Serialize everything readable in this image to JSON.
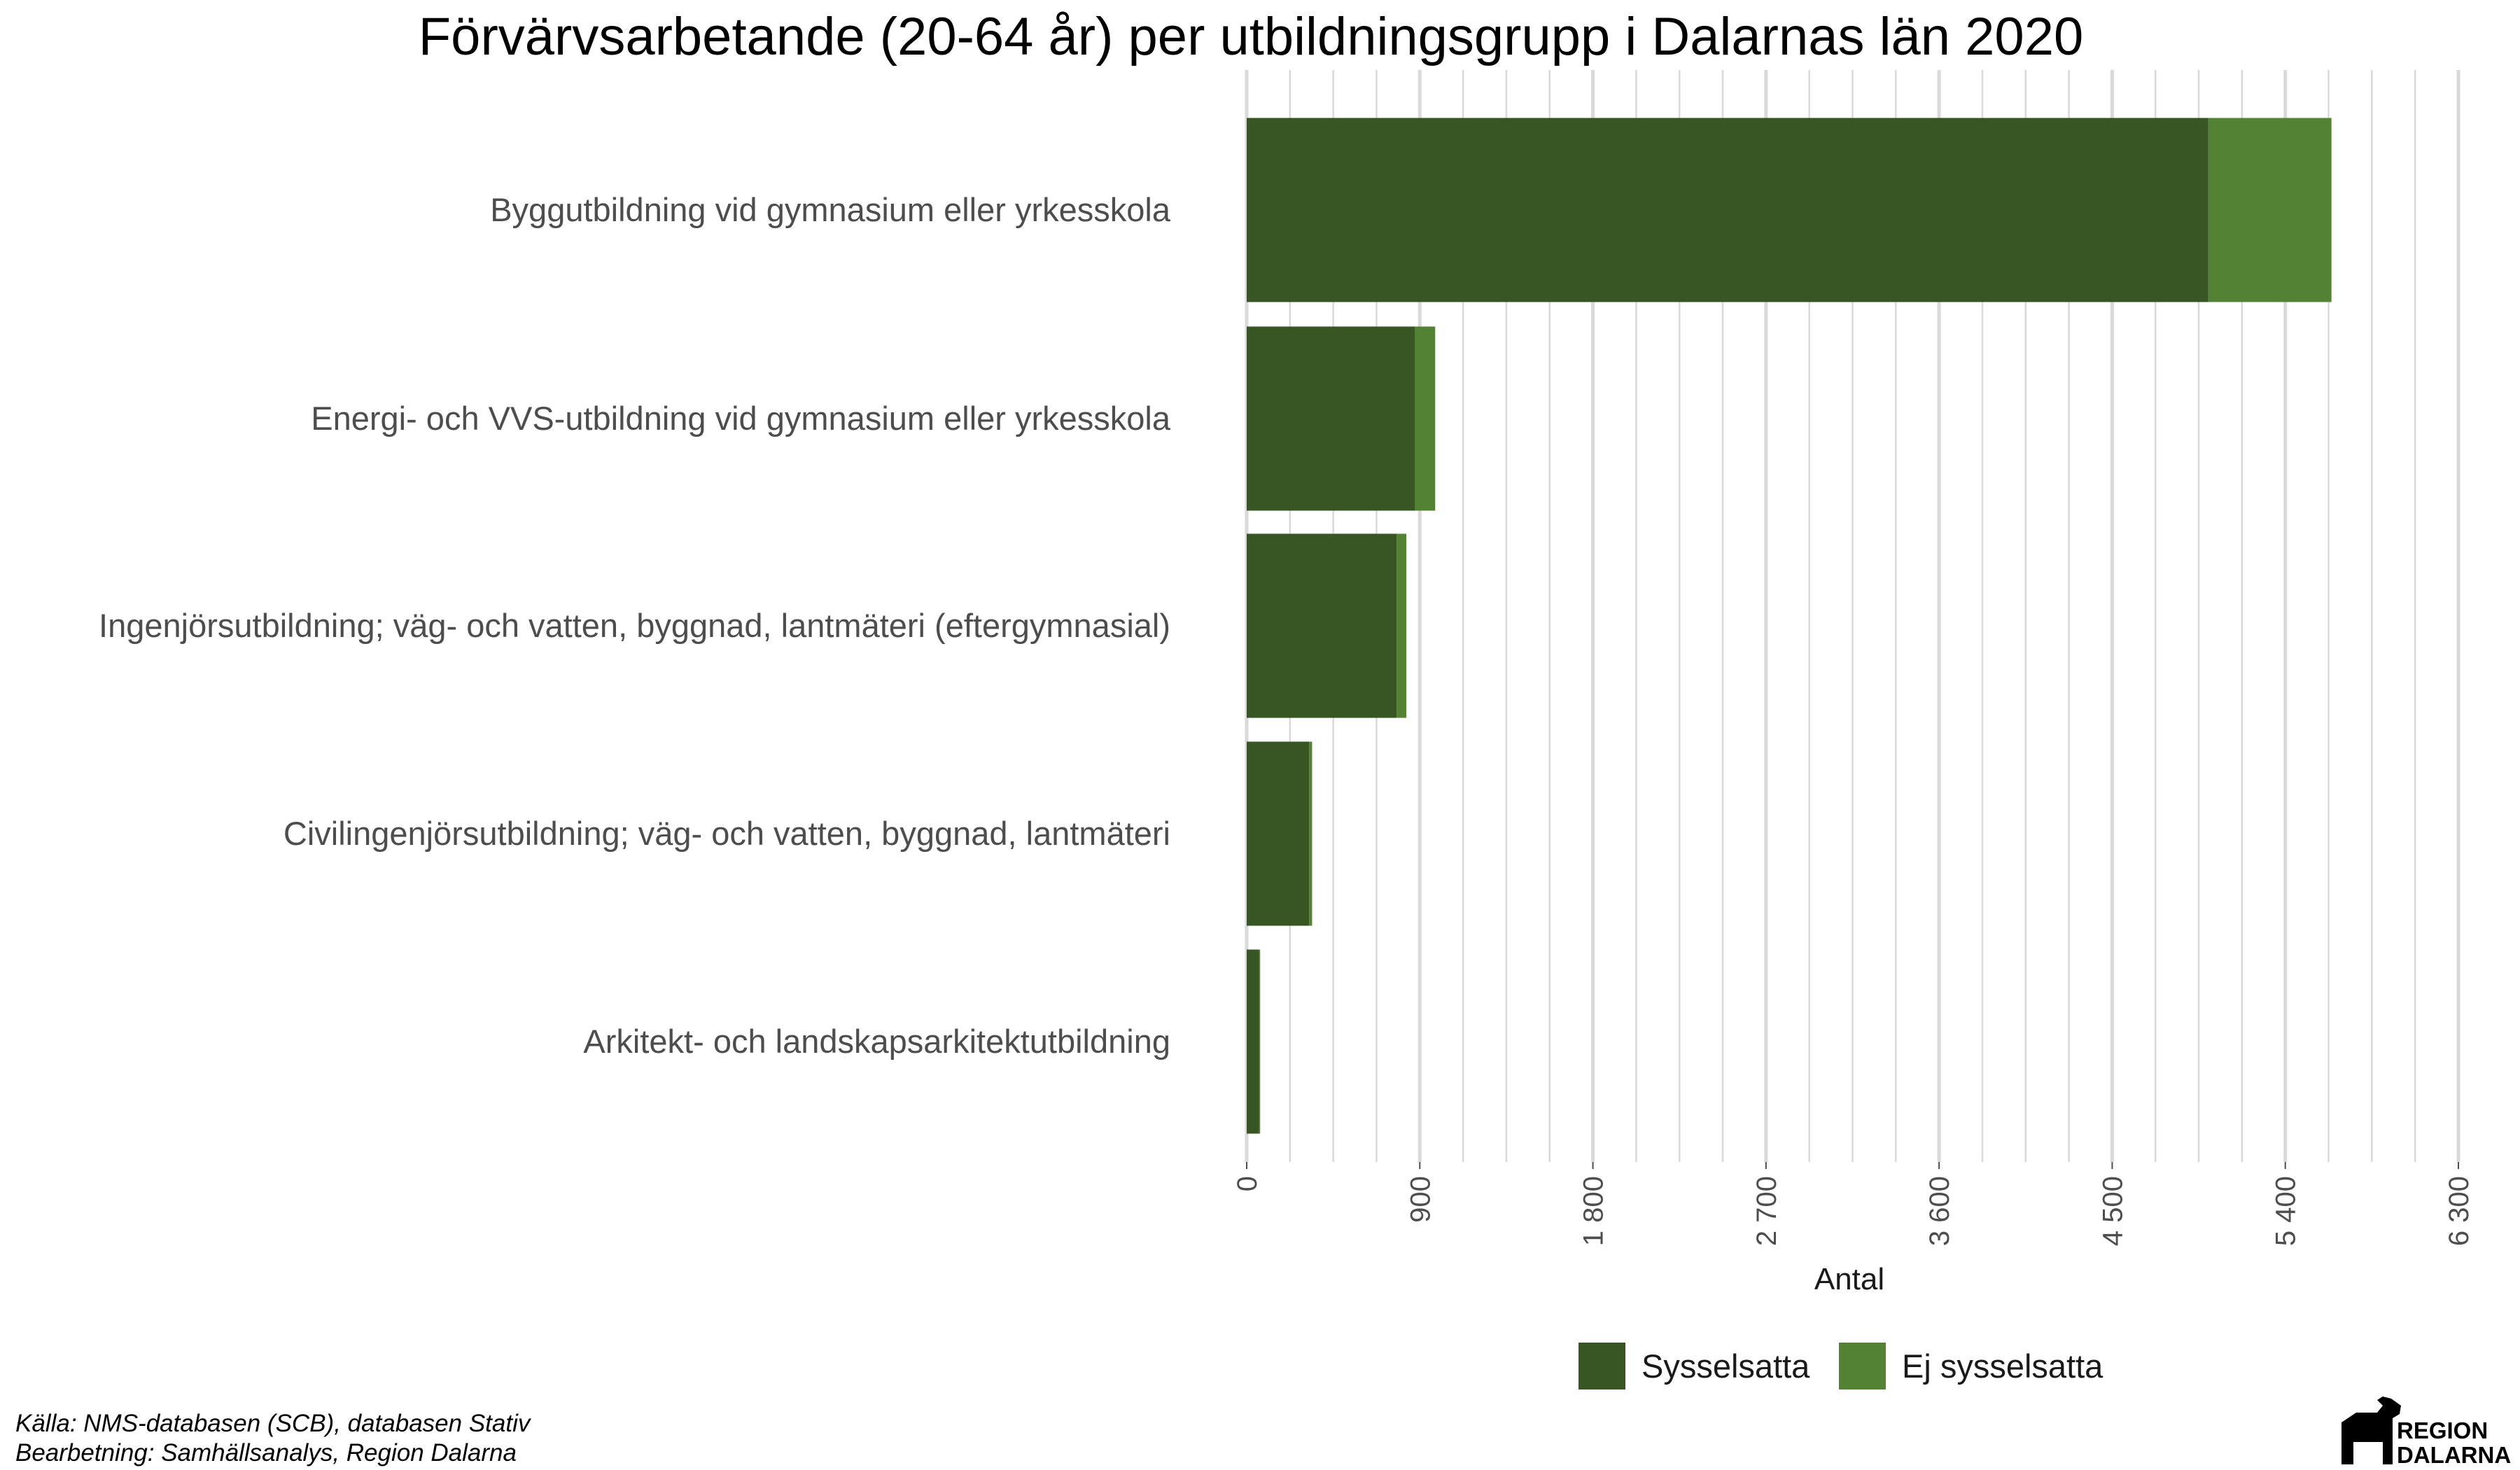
{
  "chart_data": {
    "type": "bar",
    "orientation": "horizontal",
    "stacked": true,
    "title": "Förvärvsarbetande (20-64 år) per utbildningsgrupp i Dalarnas län 2020",
    "xlabel": "Antal",
    "ylabel": "",
    "xlim": [
      0,
      6300
    ],
    "x_ticks": [
      0,
      900,
      1800,
      2700,
      3600,
      4500,
      5400,
      6300
    ],
    "x_tick_labels": [
      "0",
      "900",
      "1 800",
      "2 700",
      "3 600",
      "4 500",
      "5 400",
      "6 300"
    ],
    "grid": true,
    "legend_position": "bottom",
    "categories": [
      "Byggutbildning vid gymnasium eller yrkesskola",
      "Energi- och VVS-utbildning vid gymnasium eller yrkesskola",
      "Ingenjörsutbildning; väg- och vatten, byggnad, lantmäteri (eftergymnasial)",
      "Civilingenjörsutbildning; väg- och vatten, byggnad, lantmäteri",
      "Arkitekt- och landskapsarkitektutbildning"
    ],
    "series": [
      {
        "name": "Sysselsatta",
        "color": "#375623",
        "values": [
          5000,
          875,
          780,
          325,
          65
        ]
      },
      {
        "name": "Ej sysselsatta",
        "color": "#548235",
        "values": [
          640,
          105,
          50,
          15,
          5
        ]
      }
    ]
  },
  "caption": {
    "source": "Källa: NMS-databasen (SCB), databasen Stativ",
    "processing": "Bearbetning: Samhällsanalys, Region Dalarna"
  },
  "logo": {
    "line1": "REGION",
    "line2": "DALARNA"
  }
}
